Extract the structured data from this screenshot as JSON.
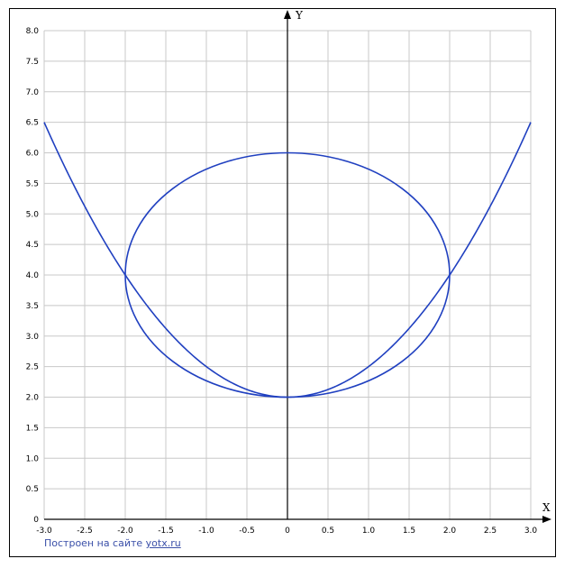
{
  "chart_data": {
    "type": "line",
    "xlabel": "X",
    "ylabel": "Y",
    "xlim": [
      -3,
      3
    ],
    "ylim": [
      0,
      8
    ],
    "grid": true,
    "x_ticks": [
      "-3.0",
      "-2.5",
      "-2.0",
      "-1.5",
      "-1.0",
      "-0.5",
      "0",
      "0.5",
      "1.0",
      "1.5",
      "2.0",
      "2.5",
      "3.0"
    ],
    "y_ticks": [
      "0",
      "0.5",
      "1.0",
      "1.5",
      "2.0",
      "2.5",
      "3.0",
      "3.5",
      "4.0",
      "4.5",
      "5.0",
      "5.5",
      "6.0",
      "6.5",
      "7.0",
      "7.5",
      "8.0"
    ],
    "series": [
      {
        "kind": "function",
        "equation": "y = 0.5x^2 + 2",
        "x_range": [
          -3,
          3
        ],
        "color": "#2040c0",
        "points": [
          [
            -3,
            6.5
          ],
          [
            -2,
            4
          ],
          [
            -1,
            2.5
          ],
          [
            0,
            2
          ],
          [
            1,
            2.5
          ],
          [
            2,
            4
          ],
          [
            3,
            6.5
          ]
        ]
      },
      {
        "kind": "circle",
        "equation": "x^2 + (y-4)^2 = 4",
        "center": [
          0,
          4
        ],
        "radius": 2,
        "color": "#2040c0"
      }
    ]
  },
  "credit": {
    "prefix": "Построен на сайте ",
    "link": "yotx.ru"
  }
}
